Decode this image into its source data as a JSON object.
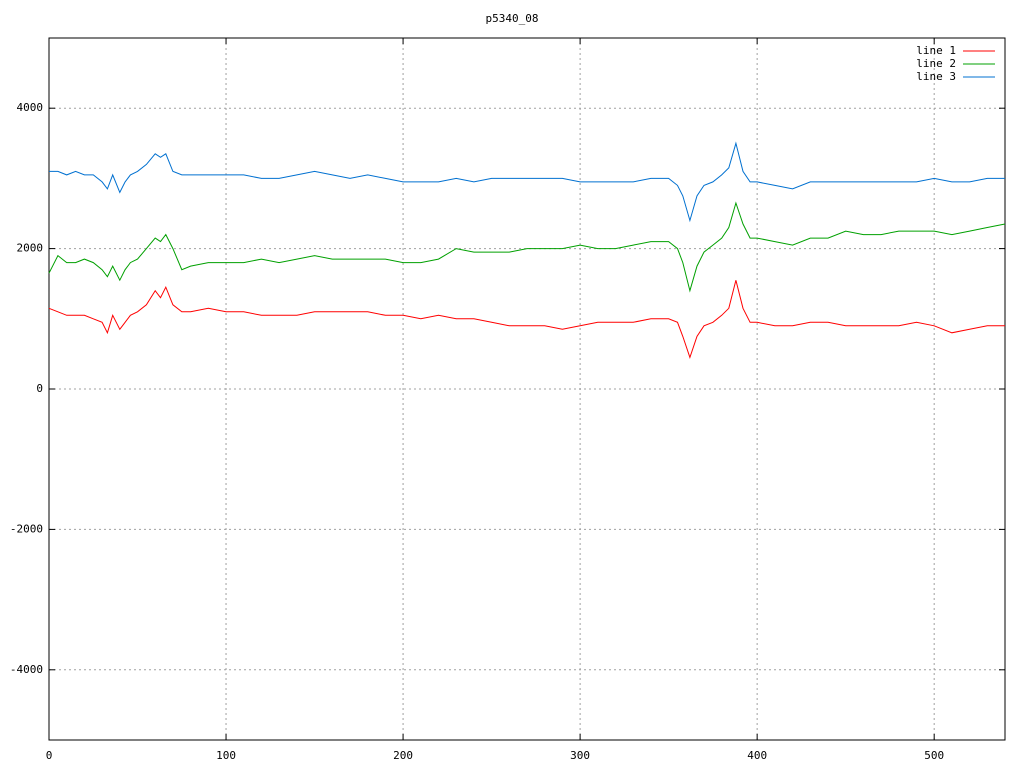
{
  "chart_data": {
    "type": "line",
    "title": "p5340_08",
    "x": [
      0,
      5,
      10,
      15,
      20,
      25,
      30,
      33,
      36,
      40,
      43,
      46,
      50,
      55,
      60,
      63,
      66,
      70,
      75,
      80,
      90,
      100,
      110,
      120,
      130,
      140,
      150,
      160,
      170,
      180,
      190,
      200,
      210,
      220,
      230,
      240,
      250,
      260,
      270,
      280,
      290,
      300,
      310,
      320,
      330,
      340,
      350,
      355,
      358,
      362,
      366,
      370,
      375,
      380,
      384,
      388,
      392,
      396,
      400,
      410,
      420,
      430,
      440,
      450,
      460,
      470,
      480,
      490,
      500,
      510,
      520,
      530,
      540
    ],
    "series": [
      {
        "name": "line 1",
        "color": "#ff0000",
        "values": [
          1150,
          1100,
          1050,
          1050,
          1050,
          1000,
          950,
          800,
          1050,
          850,
          950,
          1050,
          1100,
          1200,
          1400,
          1300,
          1450,
          1200,
          1100,
          1100,
          1150,
          1100,
          1100,
          1050,
          1050,
          1050,
          1100,
          1100,
          1100,
          1100,
          1050,
          1050,
          1000,
          1050,
          1000,
          1000,
          950,
          900,
          900,
          900,
          850,
          900,
          950,
          950,
          950,
          1000,
          1000,
          950,
          750,
          450,
          750,
          900,
          950,
          1050,
          1150,
          1550,
          1150,
          950,
          950,
          900,
          900,
          950,
          950,
          900,
          900,
          900,
          900,
          950,
          900,
          800,
          850,
          900,
          900
        ]
      },
      {
        "name": "line 2",
        "color": "#00a000",
        "values": [
          1650,
          1900,
          1800,
          1800,
          1850,
          1800,
          1700,
          1600,
          1750,
          1550,
          1700,
          1800,
          1850,
          2000,
          2150,
          2100,
          2200,
          2000,
          1700,
          1750,
          1800,
          1800,
          1800,
          1850,
          1800,
          1850,
          1900,
          1850,
          1850,
          1850,
          1850,
          1800,
          1800,
          1850,
          2000,
          1950,
          1950,
          1950,
          2000,
          2000,
          2000,
          2050,
          2000,
          2000,
          2050,
          2100,
          2100,
          2000,
          1800,
          1400,
          1750,
          1950,
          2050,
          2150,
          2300,
          2650,
          2350,
          2150,
          2150,
          2100,
          2050,
          2150,
          2150,
          2250,
          2200,
          2200,
          2250,
          2250,
          2250,
          2200,
          2250,
          2300,
          2350
        ]
      },
      {
        "name": "line 3",
        "color": "#0070d0",
        "values": [
          3100,
          3100,
          3050,
          3100,
          3050,
          3050,
          2950,
          2850,
          3050,
          2800,
          2950,
          3050,
          3100,
          3200,
          3350,
          3300,
          3350,
          3100,
          3050,
          3050,
          3050,
          3050,
          3050,
          3000,
          3000,
          3050,
          3100,
          3050,
          3000,
          3050,
          3000,
          2950,
          2950,
          2950,
          3000,
          2950,
          3000,
          3000,
          3000,
          3000,
          3000,
          2950,
          2950,
          2950,
          2950,
          3000,
          3000,
          2900,
          2750,
          2400,
          2750,
          2900,
          2950,
          3050,
          3150,
          3500,
          3100,
          2950,
          2950,
          2900,
          2850,
          2950,
          2950,
          2950,
          2950,
          2950,
          2950,
          2950,
          3000,
          2950,
          2950,
          3000,
          3000
        ]
      }
    ],
    "xlim": [
      0,
      540
    ],
    "xticks": [
      0,
      100,
      200,
      300,
      400,
      500
    ],
    "ylim": [
      -5000,
      5000
    ],
    "yticks": [
      -4000,
      -2000,
      0,
      2000,
      4000
    ],
    "grid": true,
    "legend": "top-right"
  }
}
